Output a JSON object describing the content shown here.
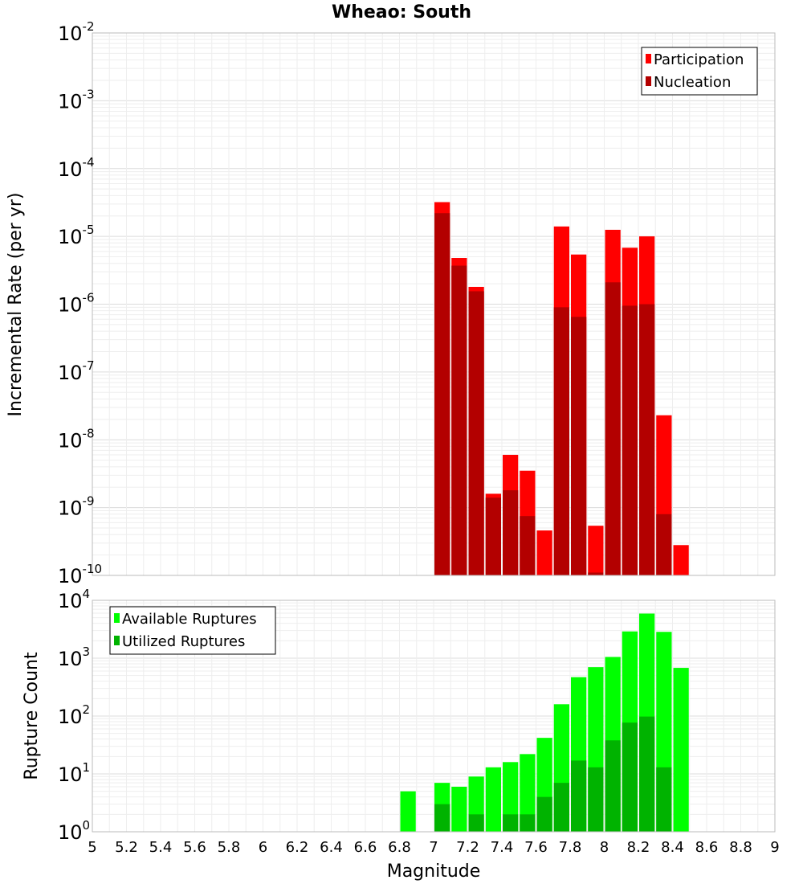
{
  "title": "Wheao: South",
  "xlabel": "Magnitude",
  "chart_data": [
    {
      "type": "bar",
      "ylabel": "Incremental Rate (per yr)",
      "yscale": "log",
      "ylim_exponents": [
        -10,
        -2
      ],
      "xlim": [
        5,
        9
      ],
      "legend_position": "top-right",
      "grid": true,
      "x": [
        7.05,
        7.15,
        7.25,
        7.35,
        7.45,
        7.55,
        7.65,
        7.75,
        7.85,
        7.95,
        8.05,
        8.15,
        8.25,
        8.35,
        8.45
      ],
      "series": [
        {
          "name": "Participation",
          "color": "#ff0000",
          "values": [
            3.2e-05,
            4.8e-06,
            1.8e-06,
            1.6e-09,
            6e-09,
            3.5e-09,
            4.6e-10,
            1.4e-05,
            5.4e-06,
            5.4e-10,
            1.25e-05,
            6.8e-06,
            1e-05,
            2.3e-08,
            2.8e-10
          ]
        },
        {
          "name": "Nucleation",
          "color": "#b30000",
          "values": [
            2.2e-05,
            3.7e-06,
            1.55e-06,
            1.4e-09,
            1.8e-09,
            7.5e-10,
            null,
            9e-07,
            6.5e-07,
            1.1e-10,
            2.1e-06,
            9.5e-07,
            1e-06,
            8e-10,
            null
          ]
        }
      ]
    },
    {
      "type": "bar",
      "ylabel": "Rupture Count",
      "yscale": "log",
      "ylim_exponents": [
        0,
        4
      ],
      "xlim": [
        5,
        9
      ],
      "legend_position": "top-left",
      "grid": true,
      "x": [
        6.85,
        7.05,
        7.15,
        7.25,
        7.35,
        7.45,
        7.55,
        7.65,
        7.75,
        7.85,
        7.95,
        8.05,
        8.15,
        8.25,
        8.35,
        8.45
      ],
      "series": [
        {
          "name": "Available Ruptures",
          "color": "#00ff00",
          "values": [
            5,
            7,
            6,
            9,
            13,
            16,
            22,
            42,
            160,
            470,
            700,
            1050,
            2900,
            5900,
            2850,
            680
          ]
        },
        {
          "name": "Utilized Ruptures",
          "color": "#00b300",
          "values": [
            null,
            3,
            1,
            2,
            1,
            2,
            2,
            4,
            7,
            17,
            13,
            38,
            77,
            98,
            13,
            1
          ]
        }
      ]
    }
  ],
  "xticks": [
    "5",
    "5.2",
    "5.4",
    "5.6",
    "5.8",
    "6",
    "6.2",
    "6.4",
    "6.6",
    "6.8",
    "7",
    "7.2",
    "7.4",
    "7.6",
    "7.8",
    "8",
    "8.2",
    "8.4",
    "8.6",
    "8.8",
    "9"
  ]
}
